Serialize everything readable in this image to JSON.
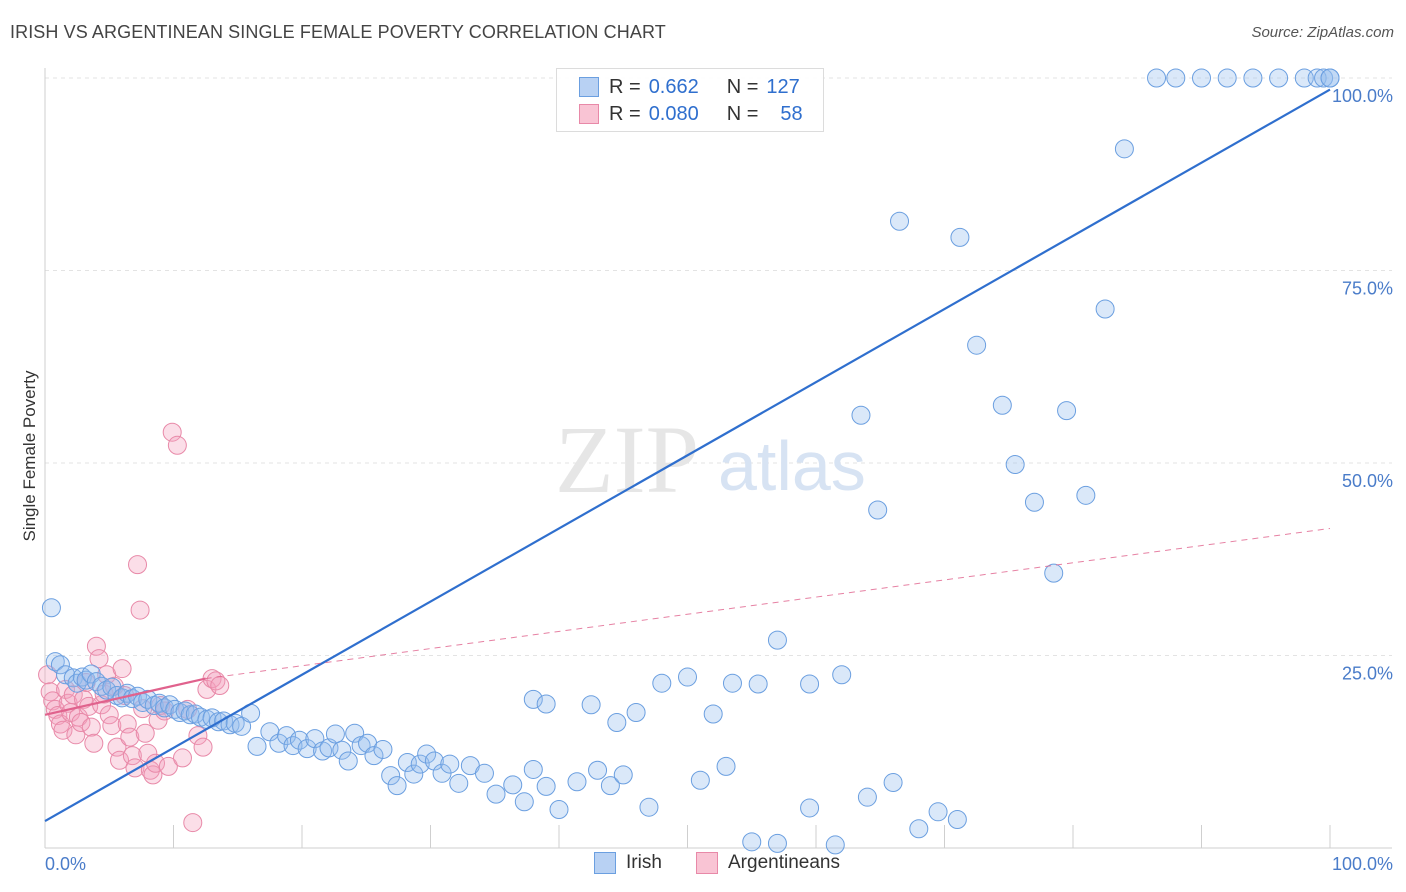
{
  "title": "IRISH VS ARGENTINEAN SINGLE FEMALE POVERTY CORRELATION CHART",
  "source": "Source: ZipAtlas.com",
  "watermark": {
    "zip": "ZIP",
    "atlas": "atlas"
  },
  "legend": {
    "rows": [
      {
        "r_key": "R =",
        "r_value": "0.662",
        "n_key": "N =",
        "n_value": "127",
        "fill": "#b8d1f3",
        "stroke": "#6b9fe0"
      },
      {
        "r_key": "R =",
        "r_value": "0.080",
        "n_key": "N =",
        "n_value": "58",
        "fill": "#f9c4d4",
        "stroke": "#e889a8"
      }
    ]
  },
  "bottom_legend": [
    {
      "label": "Irish",
      "fill": "#b8d1f3",
      "stroke": "#6b9fe0"
    },
    {
      "label": "Argentineans",
      "fill": "#f9c4d4",
      "stroke": "#e889a8"
    }
  ],
  "chart_data": {
    "type": "scatter",
    "title": "IRISH VS ARGENTINEAN SINGLE FEMALE POVERTY CORRELATION CHART",
    "xlabel": "",
    "ylabel": "Single Female Poverty",
    "xlim": [
      0,
      100
    ],
    "ylim": [
      0,
      100
    ],
    "x_tick_labels": [
      "0.0%",
      "100.0%"
    ],
    "y_ticks": [
      25,
      50,
      75,
      100
    ],
    "y_tick_labels": [
      "25.0%",
      "50.0%",
      "75.0%",
      "100.0%"
    ],
    "grid": true,
    "colors": {
      "irish": "#6b9fe0",
      "irish_line": "#2f6fce",
      "argentinean": "#e889a8",
      "argentinean_line": "#e0628d"
    },
    "series": [
      {
        "name": "Irish",
        "r": 0.662,
        "n": 127,
        "trend": {
          "x": [
            0,
            100
          ],
          "y": [
            3.5,
            98.5
          ],
          "style": "solid"
        },
        "points": [
          [
            0.5,
            31.2
          ],
          [
            0.8,
            24.2
          ],
          [
            1.2,
            23.8
          ],
          [
            1.6,
            22.5
          ],
          [
            2.2,
            22.1
          ],
          [
            2.5,
            21.4
          ],
          [
            2.9,
            22.2
          ],
          [
            3.2,
            21.8
          ],
          [
            3.6,
            22.6
          ],
          [
            4.0,
            21.6
          ],
          [
            4.4,
            21.0
          ],
          [
            4.8,
            20.5
          ],
          [
            5.2,
            20.9
          ],
          [
            5.6,
            19.8
          ],
          [
            6.0,
            19.5
          ],
          [
            6.4,
            20.1
          ],
          [
            6.8,
            19.4
          ],
          [
            7.2,
            19.7
          ],
          [
            7.6,
            18.9
          ],
          [
            8.0,
            19.3
          ],
          [
            8.5,
            18.5
          ],
          [
            8.9,
            18.8
          ],
          [
            9.3,
            18.2
          ],
          [
            9.7,
            18.6
          ],
          [
            10.1,
            18.0
          ],
          [
            10.5,
            17.6
          ],
          [
            10.9,
            17.8
          ],
          [
            11.3,
            17.3
          ],
          [
            11.7,
            17.4
          ],
          [
            12.1,
            17.0
          ],
          [
            12.6,
            16.7
          ],
          [
            13.0,
            16.9
          ],
          [
            13.5,
            16.4
          ],
          [
            13.9,
            16.5
          ],
          [
            14.4,
            16.0
          ],
          [
            14.8,
            16.2
          ],
          [
            15.3,
            15.8
          ],
          [
            16.0,
            17.5
          ],
          [
            16.5,
            13.2
          ],
          [
            17.5,
            15.1
          ],
          [
            18.2,
            13.6
          ],
          [
            18.8,
            14.6
          ],
          [
            19.3,
            13.3
          ],
          [
            19.8,
            14.0
          ],
          [
            20.4,
            12.9
          ],
          [
            21.0,
            14.2
          ],
          [
            21.6,
            12.6
          ],
          [
            22.1,
            13.0
          ],
          [
            22.6,
            14.8
          ],
          [
            23.1,
            12.7
          ],
          [
            23.6,
            11.3
          ],
          [
            24.1,
            14.9
          ],
          [
            24.6,
            13.3
          ],
          [
            25.1,
            13.6
          ],
          [
            25.6,
            12.0
          ],
          [
            26.3,
            12.8
          ],
          [
            26.9,
            9.4
          ],
          [
            27.4,
            8.1
          ],
          [
            28.2,
            11.1
          ],
          [
            28.7,
            9.6
          ],
          [
            29.2,
            10.9
          ],
          [
            29.7,
            12.2
          ],
          [
            30.3,
            11.3
          ],
          [
            30.9,
            9.7
          ],
          [
            31.5,
            10.9
          ],
          [
            32.2,
            8.4
          ],
          [
            33.1,
            10.7
          ],
          [
            34.2,
            9.7
          ],
          [
            35.1,
            7.0
          ],
          [
            36.4,
            8.2
          ],
          [
            37.3,
            6.0
          ],
          [
            38.0,
            10.2
          ],
          [
            39.0,
            8.0
          ],
          [
            40.0,
            5.0
          ],
          [
            41.4,
            8.6
          ],
          [
            43.0,
            10.1
          ],
          [
            44.0,
            8.1
          ],
          [
            45.0,
            9.5
          ],
          [
            47.0,
            5.3
          ],
          [
            51.0,
            8.8
          ],
          [
            53.0,
            10.6
          ],
          [
            55.0,
            0.8
          ],
          [
            57.0,
            0.6
          ],
          [
            59.5,
            5.2
          ],
          [
            61.5,
            0.4
          ],
          [
            64.0,
            6.6
          ],
          [
            66.0,
            8.5
          ],
          [
            68.0,
            2.5
          ],
          [
            69.5,
            4.7
          ],
          [
            71.0,
            3.7
          ],
          [
            38.0,
            19.3
          ],
          [
            39.0,
            18.7
          ],
          [
            42.5,
            18.6
          ],
          [
            44.5,
            16.3
          ],
          [
            46.0,
            17.6
          ],
          [
            48.0,
            21.4
          ],
          [
            50.0,
            22.2
          ],
          [
            52.0,
            17.4
          ],
          [
            53.5,
            21.4
          ],
          [
            55.5,
            21.3
          ],
          [
            57.0,
            27.0
          ],
          [
            59.5,
            21.3
          ],
          [
            62.0,
            22.5
          ],
          [
            63.5,
            56.2
          ],
          [
            64.8,
            43.9
          ],
          [
            66.5,
            81.4
          ],
          [
            71.2,
            79.3
          ],
          [
            72.5,
            65.3
          ],
          [
            74.5,
            57.5
          ],
          [
            75.5,
            49.8
          ],
          [
            77.0,
            44.9
          ],
          [
            78.5,
            35.7
          ],
          [
            79.5,
            56.8
          ],
          [
            81.0,
            45.8
          ],
          [
            82.5,
            70.0
          ],
          [
            84.0,
            90.8
          ],
          [
            86.5,
            100
          ],
          [
            88.0,
            100
          ],
          [
            90.0,
            100
          ],
          [
            92.0,
            100
          ],
          [
            94.0,
            100
          ],
          [
            96.0,
            100
          ],
          [
            98.0,
            100
          ],
          [
            99.0,
            100
          ],
          [
            99.5,
            100
          ],
          [
            100.0,
            100
          ],
          [
            100.0,
            100
          ]
        ]
      },
      {
        "name": "Argentineans",
        "r": 0.08,
        "n": 58,
        "trend": {
          "x": [
            0,
            12.5
          ],
          "y": [
            17.3,
            22.0
          ],
          "style": "solid",
          "extended": {
            "x": [
              12.5,
              100
            ],
            "y": [
              22.0,
              41.5
            ],
            "style": "dashed"
          }
        },
        "points": [
          [
            0.2,
            22.5
          ],
          [
            0.4,
            20.3
          ],
          [
            0.6,
            19.1
          ],
          [
            0.8,
            18.0
          ],
          [
            1.0,
            17.2
          ],
          [
            1.2,
            16.1
          ],
          [
            1.4,
            15.3
          ],
          [
            1.6,
            20.6
          ],
          [
            1.8,
            18.8
          ],
          [
            2.0,
            17.6
          ],
          [
            2.2,
            19.9
          ],
          [
            2.4,
            14.7
          ],
          [
            2.6,
            17.0
          ],
          [
            2.8,
            16.3
          ],
          [
            3.0,
            19.3
          ],
          [
            3.2,
            21.5
          ],
          [
            3.4,
            18.4
          ],
          [
            3.6,
            15.7
          ],
          [
            3.8,
            13.6
          ],
          [
            4.0,
            26.2
          ],
          [
            4.2,
            24.6
          ],
          [
            4.4,
            18.6
          ],
          [
            4.6,
            20.0
          ],
          [
            4.8,
            22.5
          ],
          [
            5.0,
            17.3
          ],
          [
            5.2,
            15.9
          ],
          [
            5.4,
            21.0
          ],
          [
            5.6,
            13.1
          ],
          [
            5.8,
            11.4
          ],
          [
            6.0,
            23.3
          ],
          [
            6.2,
            19.8
          ],
          [
            6.4,
            16.1
          ],
          [
            6.6,
            14.4
          ],
          [
            6.8,
            12.0
          ],
          [
            7.0,
            10.4
          ],
          [
            7.2,
            36.8
          ],
          [
            7.4,
            30.9
          ],
          [
            7.6,
            18.1
          ],
          [
            7.8,
            14.9
          ],
          [
            8.0,
            12.3
          ],
          [
            8.2,
            10.1
          ],
          [
            8.4,
            9.5
          ],
          [
            8.6,
            11.0
          ],
          [
            8.8,
            16.6
          ],
          [
            9.0,
            18.5
          ],
          [
            9.3,
            17.8
          ],
          [
            9.6,
            10.6
          ],
          [
            9.9,
            54.0
          ],
          [
            10.3,
            52.3
          ],
          [
            10.7,
            11.7
          ],
          [
            11.1,
            18.0
          ],
          [
            11.5,
            3.3
          ],
          [
            11.9,
            14.6
          ],
          [
            12.3,
            13.1
          ],
          [
            12.6,
            20.6
          ],
          [
            13.0,
            22.0
          ],
          [
            13.3,
            21.7
          ],
          [
            13.6,
            21.1
          ]
        ]
      }
    ]
  }
}
